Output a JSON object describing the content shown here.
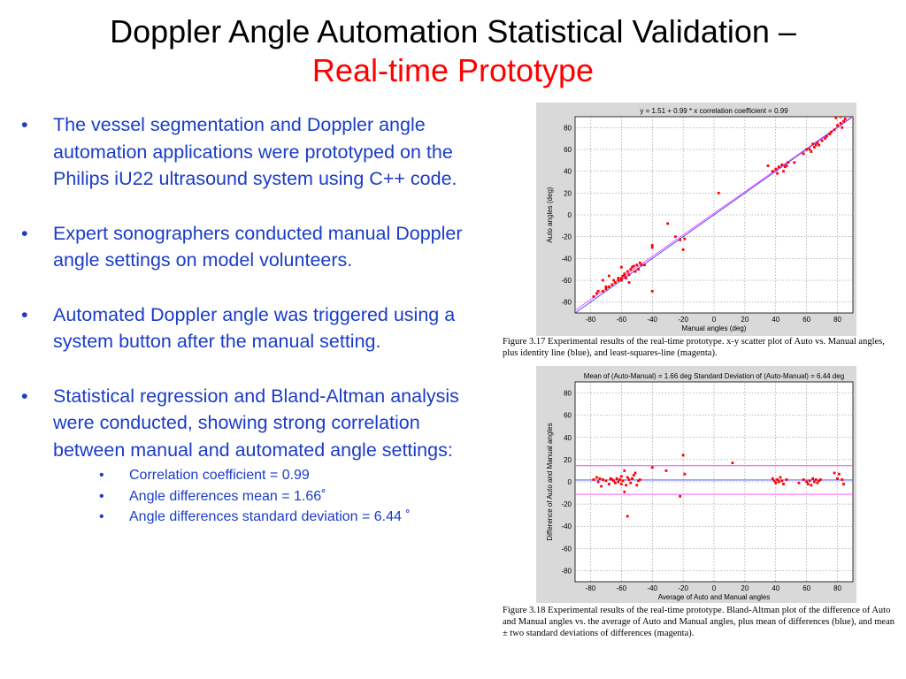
{
  "title": {
    "main": "Doppler Angle Automation Statistical Validation –",
    "sub": "Real-time Prototype"
  },
  "bullets": [
    "The vessel segmentation and Doppler angle automation applications were prototyped on the Philips iU22 ultrasound system using C++ code.",
    "Expert sonographers conducted manual Doppler angle settings on model volunteers.",
    "Automated Doppler angle was triggered using a system button after the manual setting.",
    "Statistical regression and Bland-Altman analysis were conducted, showing strong correlation between manual and automated angle settings:"
  ],
  "sub_bullets": [
    "Correlation coefficient = 0.99",
    "Angle differences mean = 1.66˚",
    "Angle differences standard deviation = 6.44 ˚"
  ],
  "bullet_symbol": "•",
  "colors": {
    "bullet_text": "#1a3cc8",
    "title_sub": "#ff0000",
    "points": "#ff0000",
    "identity": "#3a3aff",
    "lsq": "#ff40ff"
  },
  "chart_data": [
    {
      "type": "scatter",
      "title": "y = 1.51 + 0.99 * x      correlation coefficient = 0.99",
      "xlabel": "Manual angles (deg)",
      "ylabel": "Auto angles (deg)",
      "xlim": [
        -90,
        90
      ],
      "ylim": [
        -90,
        90
      ],
      "xticks": [
        -80,
        -60,
        -40,
        -20,
        0,
        20,
        40,
        60,
        80
      ],
      "yticks": [
        -80,
        -60,
        -40,
        -20,
        0,
        20,
        40,
        60,
        80
      ],
      "grid": true,
      "lines": [
        {
          "kind": "identity",
          "slope": 1,
          "intercept": 0,
          "color": "#3a3aff"
        },
        {
          "kind": "least-squares",
          "slope": 0.99,
          "intercept": 1.51,
          "color": "#ff40ff"
        }
      ],
      "points": [
        [
          -78,
          -75
        ],
        [
          -76,
          -72
        ],
        [
          -75,
          -70
        ],
        [
          -72,
          -70
        ],
        [
          -70,
          -68
        ],
        [
          -70,
          -66
        ],
        [
          -68,
          -66
        ],
        [
          -66,
          -64
        ],
        [
          -65,
          -60
        ],
        [
          -64,
          -62
        ],
        [
          -62,
          -60
        ],
        [
          -62,
          -58
        ],
        [
          -60,
          -60
        ],
        [
          -60,
          -58
        ],
        [
          -59,
          -56
        ],
        [
          -58,
          -56
        ],
        [
          -58,
          -54
        ],
        [
          -57,
          -58
        ],
        [
          -56,
          -52
        ],
        [
          -55,
          -55
        ],
        [
          -54,
          -50
        ],
        [
          -53,
          -48
        ],
        [
          -52,
          -47
        ],
        [
          -51,
          -52
        ],
        [
          -50,
          -46
        ],
        [
          -49,
          -50
        ],
        [
          -48,
          -44
        ],
        [
          -47,
          -46
        ],
        [
          -45,
          -46
        ],
        [
          -60,
          -48
        ],
        [
          -68,
          -56
        ],
        [
          -72,
          -60
        ],
        [
          -55,
          -62
        ],
        [
          -40,
          -70
        ],
        [
          -40,
          -30
        ],
        [
          -40,
          -28
        ],
        [
          -30,
          -8
        ],
        [
          -25,
          -20
        ],
        [
          -22,
          -23
        ],
        [
          -20,
          -32
        ],
        [
          -19,
          -22
        ],
        [
          3,
          20
        ],
        [
          35,
          45
        ],
        [
          38,
          40
        ],
        [
          40,
          42
        ],
        [
          41,
          38
        ],
        [
          42,
          44
        ],
        [
          44,
          46
        ],
        [
          45,
          40
        ],
        [
          46,
          44
        ],
        [
          47,
          45
        ],
        [
          48,
          48
        ],
        [
          52,
          48
        ],
        [
          58,
          56
        ],
        [
          60,
          60
        ],
        [
          62,
          60
        ],
        [
          63,
          58
        ],
        [
          64,
          65
        ],
        [
          65,
          62
        ],
        [
          66,
          64
        ],
        [
          67,
          66
        ],
        [
          68,
          64
        ],
        [
          70,
          68
        ],
        [
          72,
          70
        ],
        [
          73,
          72
        ],
        [
          75,
          74
        ],
        [
          76,
          76
        ],
        [
          78,
          78
        ],
        [
          80,
          82
        ],
        [
          82,
          84
        ],
        [
          83,
          80
        ],
        [
          84,
          86
        ],
        [
          85,
          88
        ],
        [
          79,
          89
        ],
        [
          82,
          90
        ]
      ],
      "caption": "Figure 3.17 Experimental results of the real-time prototype. x-y scatter plot of Auto vs. Manual angles, plus identity line (blue), and least-squares-line (magenta)."
    },
    {
      "type": "scatter",
      "title": "Mean of (Auto-Manual) = 1.66 deg     Standard Deviation of (Auto-Manual) = 6.44 deg",
      "xlabel": "Average of Auto and Manual angles",
      "ylabel": "Difference of Auto and Manual angles",
      "xlim": [
        -90,
        90
      ],
      "ylim": [
        -90,
        90
      ],
      "xticks": [
        -80,
        -60,
        -40,
        -20,
        0,
        20,
        40,
        60,
        80
      ],
      "yticks": [
        -80,
        -60,
        -40,
        -20,
        0,
        20,
        40,
        60,
        80
      ],
      "grid": true,
      "hlines": [
        {
          "kind": "mean",
          "y": 1.66,
          "color": "#3a3aff"
        },
        {
          "kind": "mean+2sd",
          "y": 14.54,
          "color": "#ff40ff"
        },
        {
          "kind": "mean-2sd",
          "y": -11.22,
          "color": "#ff40ff"
        }
      ],
      "points": [
        [
          -78,
          2
        ],
        [
          -76,
          4
        ],
        [
          -75,
          0
        ],
        [
          -74,
          3
        ],
        [
          -73,
          -4
        ],
        [
          -72,
          2
        ],
        [
          -70,
          1
        ],
        [
          -68,
          -2
        ],
        [
          -67,
          3
        ],
        [
          -66,
          2
        ],
        [
          -65,
          1
        ],
        [
          -64,
          -1
        ],
        [
          -63,
          3
        ],
        [
          -62,
          0
        ],
        [
          -61,
          2
        ],
        [
          -60,
          -2
        ],
        [
          -60,
          5
        ],
        [
          -59,
          1
        ],
        [
          -58,
          10
        ],
        [
          -57,
          -3
        ],
        [
          -56,
          4
        ],
        [
          -55,
          2
        ],
        [
          -54,
          -1
        ],
        [
          -53,
          3
        ],
        [
          -52,
          6
        ],
        [
          -51,
          8
        ],
        [
          -50,
          -3
        ],
        [
          -49,
          1
        ],
        [
          -48,
          2
        ],
        [
          -58,
          -9
        ],
        [
          -56,
          -31
        ],
        [
          -40,
          13
        ],
        [
          -31,
          10
        ],
        [
          -22,
          -13
        ],
        [
          -20,
          24
        ],
        [
          -19,
          7
        ],
        [
          12,
          17
        ],
        [
          38,
          3
        ],
        [
          39,
          1
        ],
        [
          40,
          -1
        ],
        [
          41,
          2
        ],
        [
          42,
          0
        ],
        [
          43,
          4
        ],
        [
          44,
          1
        ],
        [
          45,
          -2
        ],
        [
          47,
          2
        ],
        [
          55,
          -1
        ],
        [
          58,
          2
        ],
        [
          60,
          0
        ],
        [
          61,
          -2
        ],
        [
          62,
          1
        ],
        [
          63,
          -3
        ],
        [
          64,
          3
        ],
        [
          65,
          0
        ],
        [
          66,
          2
        ],
        [
          67,
          -1
        ],
        [
          68,
          1
        ],
        [
          69,
          2
        ],
        [
          78,
          8
        ],
        [
          80,
          3
        ],
        [
          81,
          7
        ],
        [
          83,
          2
        ],
        [
          84,
          -2
        ]
      ],
      "caption": "Figure 3.18 Experimental results of the real-time prototype. Bland-Altman plot of the difference of Auto and Manual angles vs. the average of Auto and Manual angles, plus mean of differences (blue), and mean ± two standard deviations of differences (magenta)."
    }
  ]
}
